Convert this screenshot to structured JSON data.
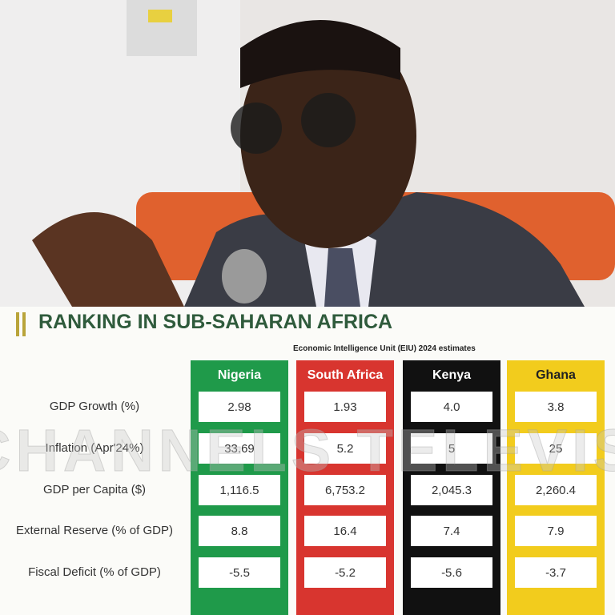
{
  "header": {
    "title": "RANKING IN SUB-SAHARAN AFRICA",
    "subtitle": "Economic Intelligence Unit (EIU) 2024 estimates"
  },
  "watermark": "CHANNELS TELEVISION",
  "table": {
    "columns": [
      "Nigeria",
      "South Africa",
      "Kenya",
      "Ghana"
    ],
    "rows": [
      {
        "label": "GDP Growth (%)",
        "values": [
          "2.98",
          "1.93",
          "4.0",
          "3.8"
        ]
      },
      {
        "label": "Inflation (Apr'24%)",
        "values": [
          "33.69",
          "5.2",
          "5",
          "25"
        ]
      },
      {
        "label": "GDP per Capita ($)",
        "values": [
          "1,116.5",
          "6,753.2",
          "2,045.3",
          "2,260.4"
        ]
      },
      {
        "label": "External Reserve (% of GDP)",
        "values": [
          "8.8",
          "16.4",
          "7.4",
          "7.9"
        ]
      },
      {
        "label": "Fiscal Deficit (% of GDP)",
        "values": [
          "-5.5",
          "-5.2",
          "-5.6",
          "-3.7"
        ]
      }
    ]
  }
}
